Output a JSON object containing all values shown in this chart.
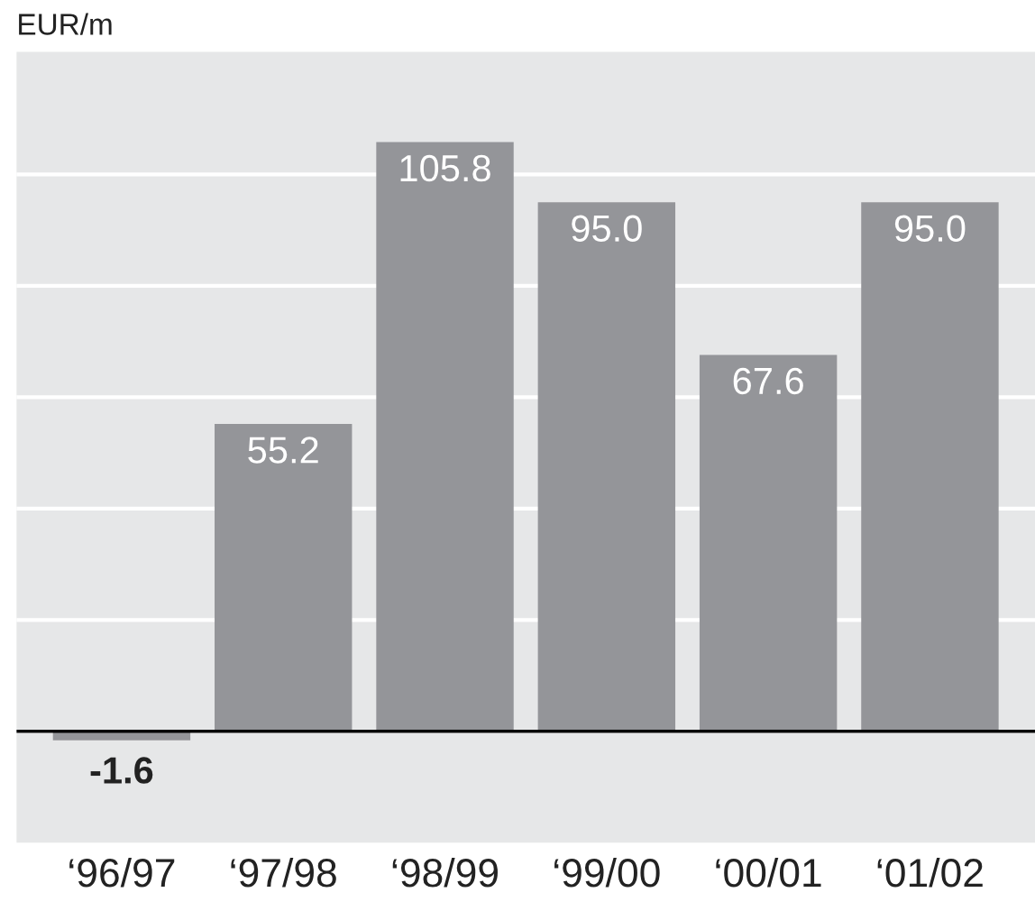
{
  "chart_data": {
    "type": "bar",
    "ylabel": "EUR/m",
    "categories": [
      "‘96/97",
      "‘97/98",
      "‘98/99",
      "‘99/00",
      "‘00/01",
      "‘01/02"
    ],
    "values": [
      -1.6,
      55.2,
      105.8,
      95.0,
      67.6,
      95.0
    ],
    "color": "#949599",
    "value_labels": [
      "-1.6",
      "55.2",
      "105.8",
      "95.0",
      "67.6",
      "95.0"
    ],
    "ylim": [
      -20,
      122
    ],
    "yticks": [
      {
        "value": 0,
        "label": null
      },
      {
        "value": 20,
        "label": null
      },
      {
        "value": 40,
        "label": null
      },
      {
        "value": 60,
        "label": null
      },
      {
        "value": 80,
        "label": null
      },
      {
        "value": 100,
        "label": null
      }
    ],
    "tick_labels": "x",
    "grid": "y"
  }
}
